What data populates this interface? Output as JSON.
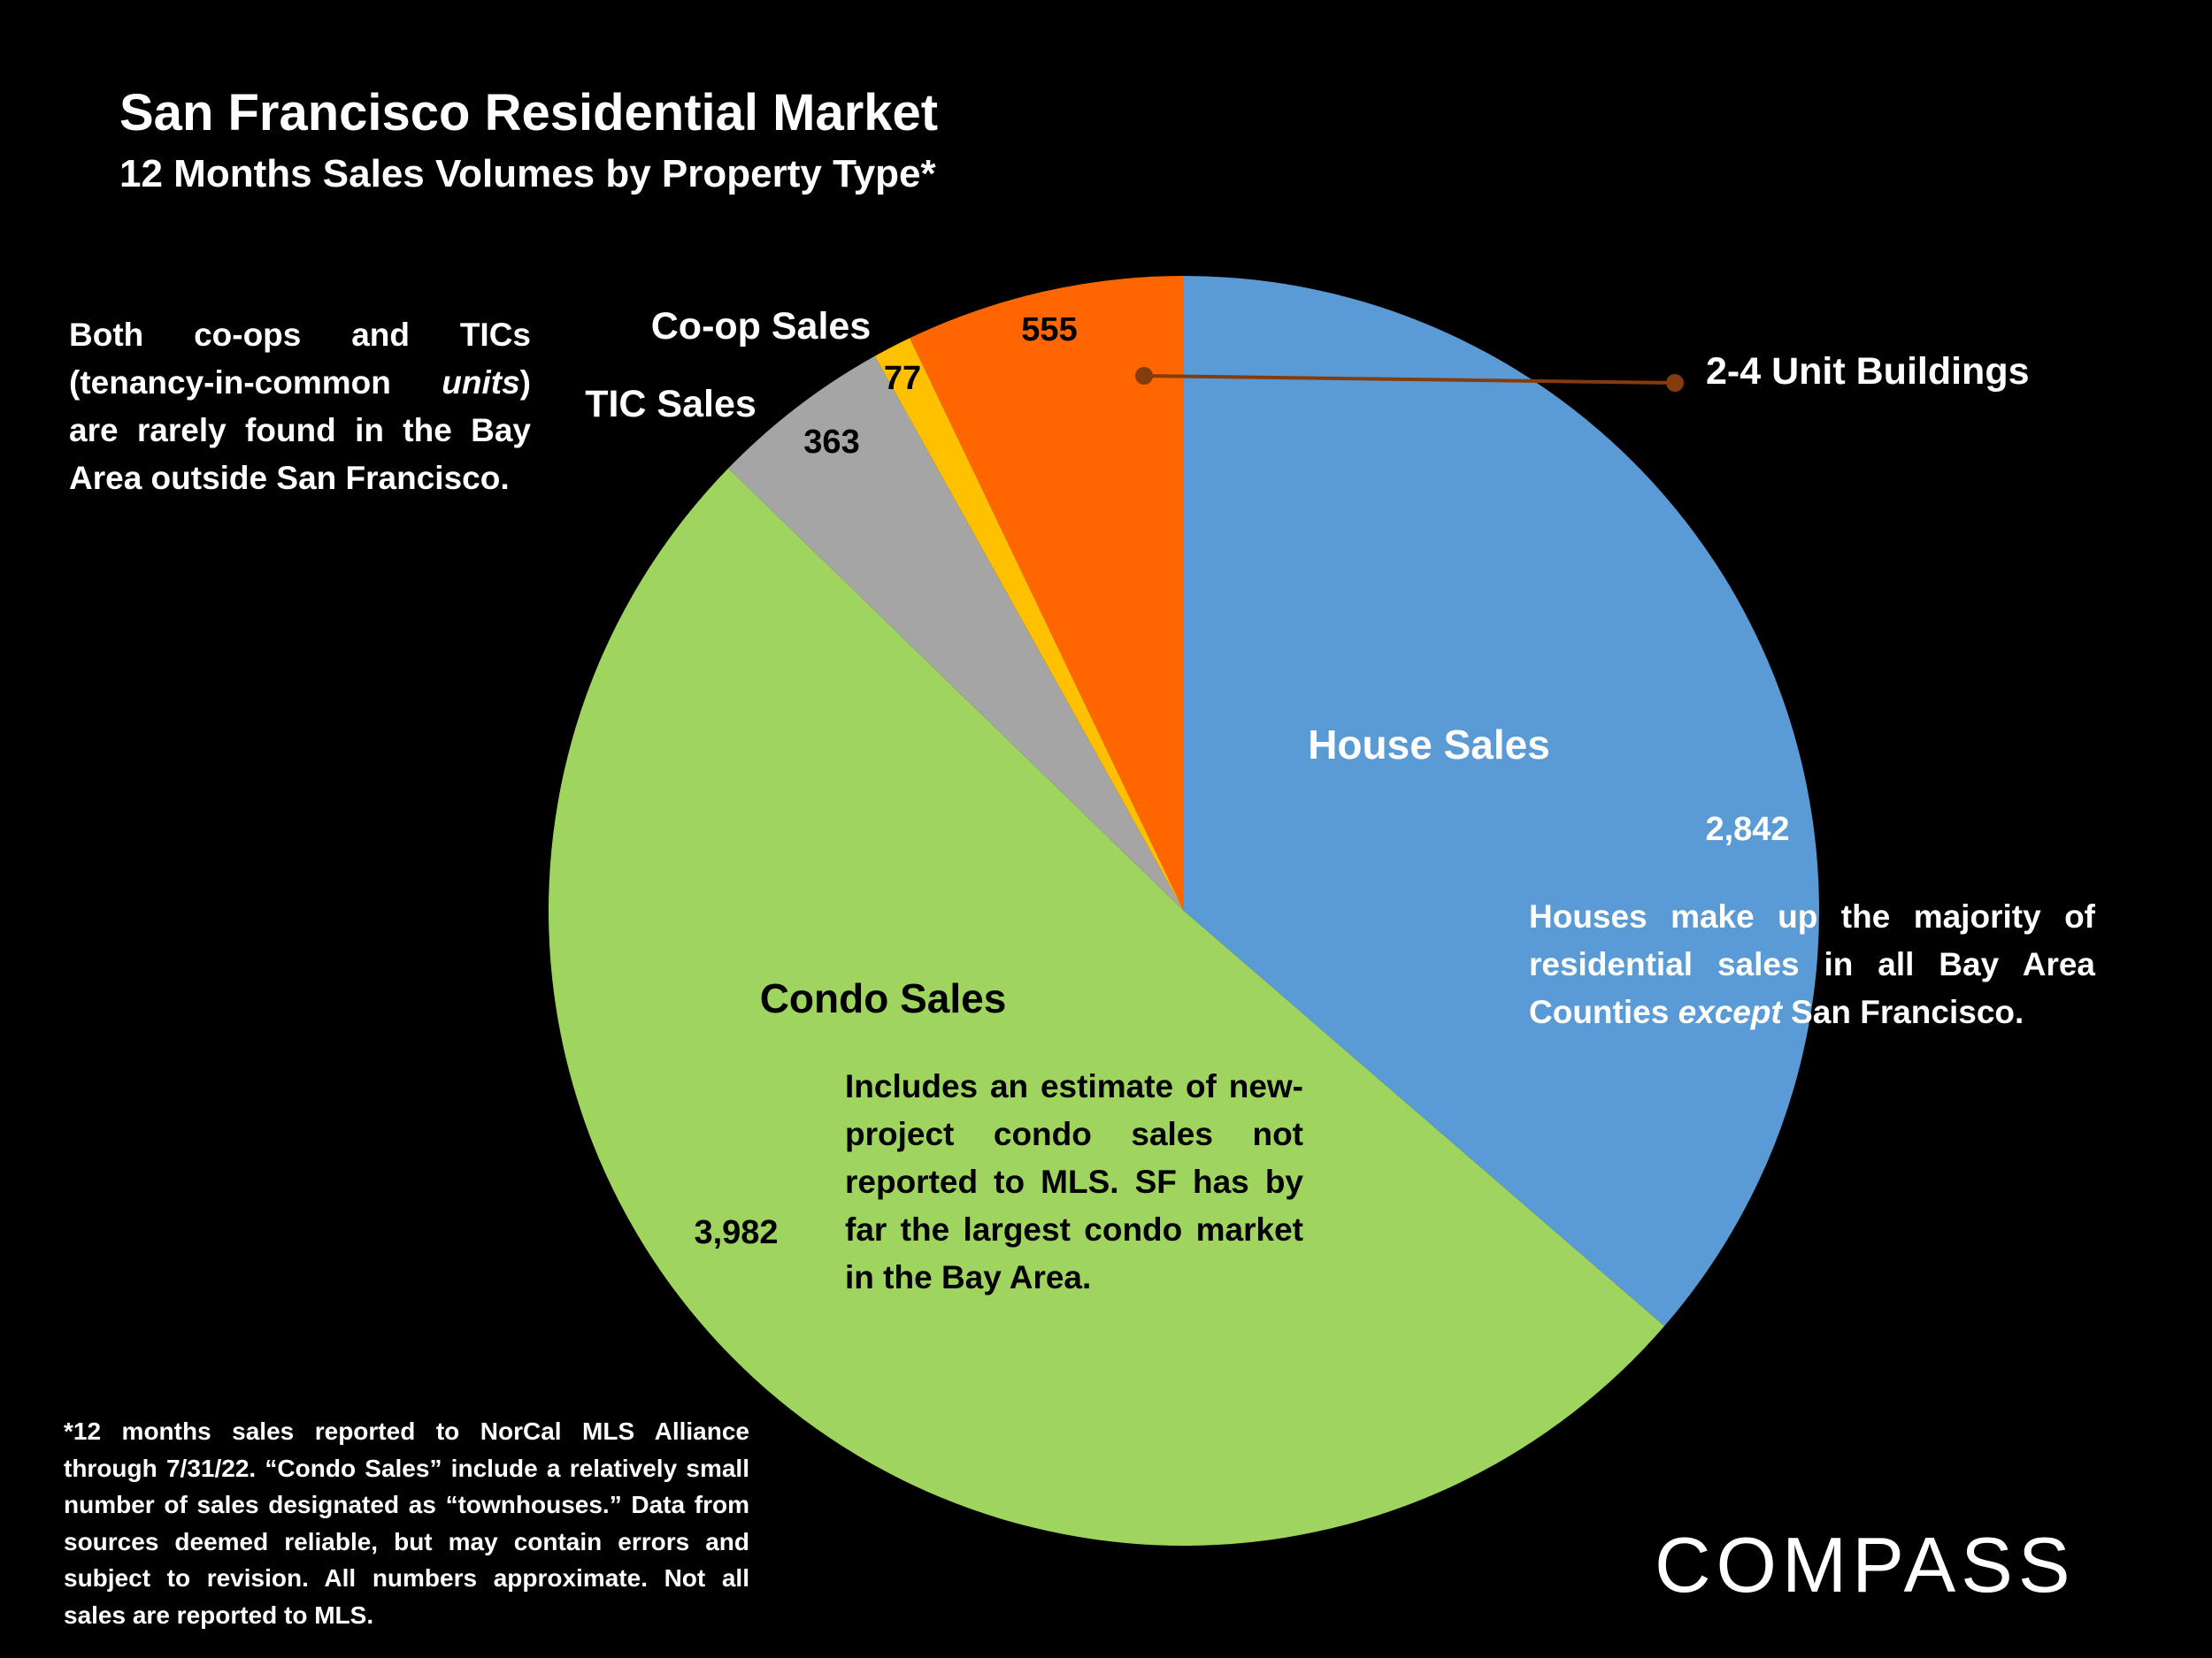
{
  "header": {
    "title": "San Francisco Residential Market",
    "subtitle": "12 Months Sales Volumes by Property Type*"
  },
  "notes": {
    "left": "Both co-ops and TICs (tenancy-in-common units) are rarely found in the Bay Area outside San Francisco.",
    "left_pre": "Both co-ops and TICs (tenancy-in-common ",
    "left_em": "units",
    "left_post": ") are rarely found in the Bay Area outside San Francisco.",
    "house_pre": "Houses make up the majority of residential sales in all Bay Area Counties ",
    "house_em": "except",
    "house_post": " San Francisco.",
    "condo": "Includes an estimate of new-project condo sales not reported to MLS. SF has by far the largest condo market in the Bay Area.",
    "footnote": "*12 months sales reported to NorCal MLS Alliance through 7/31/22. “Condo Sales” include a relatively small number of sales designated as “townhouses.” Data from sources deemed reliable, but may contain errors and subject to revision. All numbers approximate. Not all sales are reported to MLS."
  },
  "logo": {
    "text": "COMPASS",
    "color": "#ffffff"
  },
  "chart_data": {
    "type": "pie",
    "title": "San Francisco Residential Market",
    "subtitle": "12 Months Sales Volumes by Property Type*",
    "start_angle_deg": 0,
    "direction": "clockwise",
    "slices": [
      {
        "name": "House Sales",
        "value": 2842,
        "value_label": "2,842",
        "color": "#5b9bd5"
      },
      {
        "name": "Condo Sales",
        "value": 3982,
        "value_label": "3,982",
        "color": "#9fd45f"
      },
      {
        "name": "TIC Sales",
        "value": 363,
        "value_label": "363",
        "color": "#a5a5a5"
      },
      {
        "name": "Co-op Sales",
        "value": 77,
        "value_label": "77",
        "color": "#ffc000"
      },
      {
        "name": "2-4 Unit Buildings",
        "value": 555,
        "value_label": "555",
        "color": "#ff6600"
      }
    ],
    "leader_line_color": "#843c0c"
  }
}
